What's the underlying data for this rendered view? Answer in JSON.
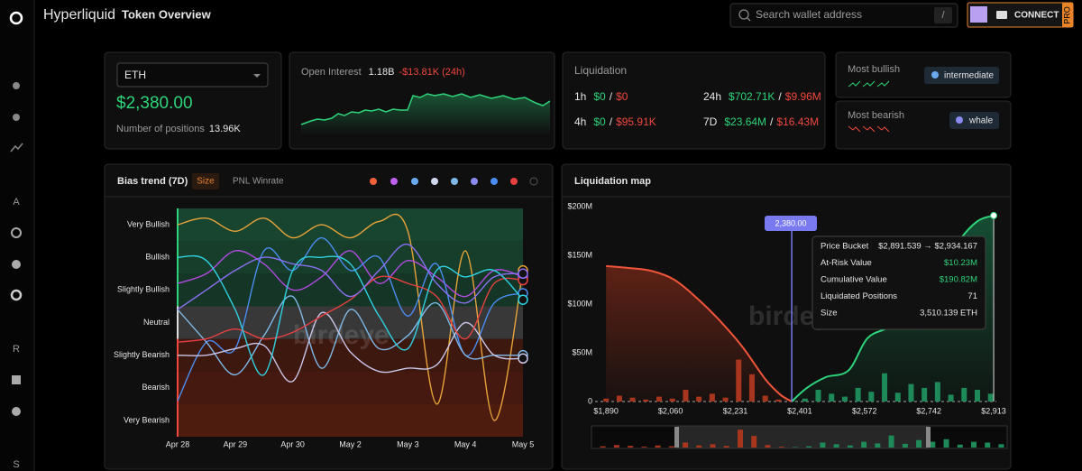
{
  "header": {
    "brand": "Hyperliquid",
    "title": "Token Overview",
    "search_placeholder": "Search wallet address",
    "shortcut": "/",
    "connect": "CONNECT",
    "pro": "PRO"
  },
  "sidebar": {
    "sections": [
      "A",
      "R",
      "S"
    ]
  },
  "token": {
    "symbol": "ETH",
    "price": "$2,380.00",
    "positions_label": "Number of positions",
    "positions": "13.96K"
  },
  "open_interest": {
    "label": "Open Interest",
    "value": "1.18B",
    "change": "-$13.81K (24h)"
  },
  "liquidation": {
    "title": "Liquidation",
    "separator": "/",
    "rows": [
      {
        "period": "1h",
        "long": "$0",
        "short": "$0"
      },
      {
        "period": "4h",
        "long": "$0",
        "short": "$95.91K"
      },
      {
        "period": "24h",
        "long": "$702.71K",
        "short": "$9.96M"
      },
      {
        "period": "7D",
        "long": "$23.64M",
        "short": "$16.43M"
      }
    ]
  },
  "sentiment": {
    "bullish_label": "Most bullish",
    "bullish_badge": "intermediate",
    "bearish_label": "Most bearish",
    "bearish_badge": "whale"
  },
  "chart_data": [
    {
      "type": "line",
      "title": "Bias trend (7D)",
      "tabs": [
        "Size",
        "PNL",
        "Winrate"
      ],
      "watermark": "birdeye",
      "categories": [
        "Apr 28",
        null,
        "Apr 29",
        null,
        "Apr 30",
        null,
        "May 2",
        null,
        "May 3",
        null,
        "May 4",
        null,
        "May 5"
      ],
      "ylim": [
        -3.5,
        3.5
      ],
      "yticks": [
        {
          "value": 3,
          "label": "Very Bullish"
        },
        {
          "value": 2,
          "label": "Bullish"
        },
        {
          "value": 1,
          "label": "Slightly Bullish"
        },
        {
          "value": 0,
          "label": "Neutral"
        },
        {
          "value": -1,
          "label": "Slightly Bearish"
        },
        {
          "value": -2,
          "label": "Bearish"
        },
        {
          "value": -3,
          "label": "Very Bearish"
        }
      ],
      "series": [
        {
          "color": "#e8a33a",
          "values": [
            3,
            3.2,
            2.8,
            3.2,
            2.6,
            3,
            2.6,
            3.1,
            2.8,
            -2.5,
            2.2,
            -3,
            1.6
          ]
        },
        {
          "color": "#b04ae0",
          "values": [
            1.2,
            1.5,
            2.2,
            1.8,
            1,
            1.4,
            2.2,
            1.2,
            1.9,
            1.4,
            0.8,
            1.6,
            1.4
          ]
        },
        {
          "color": "#4a8cf0",
          "values": [
            -2.4,
            -0.6,
            -0.8,
            2.2,
            1.6,
            2.6,
            1.6,
            2,
            0.2,
            1.8,
            -1,
            0.6,
            0.9
          ]
        },
        {
          "color": "#7fb8e6",
          "values": [
            0.4,
            -0.6,
            -1.6,
            -0.4,
            0.8,
            -1.4,
            0.4,
            -0.8,
            -0.4,
            0.6,
            -1,
            -1,
            -1
          ]
        },
        {
          "color": "#c9c6e8",
          "values": [
            -1,
            -1,
            -0.8,
            -0.7,
            -1.8,
            0.3,
            -0.9,
            -1.5,
            -1.4,
            -1.3,
            0,
            -1,
            -1.1
          ]
        },
        {
          "color": "#e84040",
          "values": [
            -0.6,
            -0.5,
            -0.2,
            -0.5,
            -0.3,
            0.2,
            0.7,
            1.4,
            1.2,
            0.8,
            -0.5,
            1.2,
            1.3
          ]
        },
        {
          "color": "#2fd0e0",
          "values": [
            2,
            1.9,
            0.4,
            -1.6,
            1.6,
            2,
            1.8,
            0.2,
            -0.8,
            1.6,
            1.4,
            1.6,
            0.7
          ]
        },
        {
          "color": "#8a6ff0",
          "values": [
            0.4,
            1,
            1.6,
            2,
            1.8,
            1.6,
            0.8,
            1.6,
            2.4,
            1.2,
            0.6,
            1.4,
            1.5
          ]
        }
      ]
    },
    {
      "type": "bar",
      "title": "Liquidation map",
      "xlim": [
        1861,
        2920
      ],
      "xticks": [
        {
          "value": 1890,
          "label": "$1,890"
        },
        {
          "value": 2060,
          "label": "$2,060"
        },
        {
          "value": 2231,
          "label": "$2,231"
        },
        {
          "value": 2401,
          "label": "$2,401"
        },
        {
          "value": 2572,
          "label": "$2,572"
        },
        {
          "value": 2742,
          "label": "$2,742"
        },
        {
          "value": 2913,
          "label": "$2,913"
        }
      ],
      "ylim": [
        0,
        200000000
      ],
      "yticks": [
        0,
        {
          "value": 50000000,
          "label": "$50M"
        },
        {
          "value": 100000000,
          "label": "$100M"
        },
        {
          "value": 150000000,
          "label": "$150M"
        },
        {
          "value": 200000000,
          "label": "$200M"
        }
      ],
      "series": [
        {
          "color": "#a8361e",
          "x": [
            1890,
            1925,
            1960,
            1995,
            2030,
            2065,
            2100,
            2135,
            2170,
            2205,
            2240,
            2275,
            2310,
            2345
          ],
          "values": [
            3000000,
            6000000,
            4000000,
            2000000,
            5000000,
            3000000,
            12000000,
            5000000,
            8000000,
            4000000,
            43000000,
            28000000,
            6000000,
            2000000
          ]
        },
        {
          "color": "#1e8a5a",
          "x": [
            2380,
            2415,
            2450,
            2485,
            2520,
            2555,
            2590,
            2625,
            2660,
            2695,
            2730,
            2765,
            2800,
            2835,
            2870,
            2905
          ],
          "values": [
            1000000,
            3000000,
            12000000,
            8000000,
            5000000,
            14000000,
            10000000,
            29000000,
            9000000,
            18000000,
            14000000,
            20000000,
            7000000,
            14000000,
            12000000,
            8000000
          ]
        }
      ],
      "lines": [
        {
          "color": "#f0553a",
          "x": [
            1890,
            1950,
            2010,
            2070,
            2130,
            2190,
            2250,
            2310,
            2350,
            2380
          ],
          "values": [
            139000000,
            137000000,
            134000000,
            125000000,
            106000000,
            83000000,
            56000000,
            23000000,
            7000000,
            0
          ]
        },
        {
          "color": "#2ed47a",
          "x": [
            2380,
            2420,
            2470,
            2530,
            2580,
            2640,
            2700,
            2760,
            2820,
            2870,
            2913
          ],
          "values": [
            0,
            14000000,
            25000000,
            32000000,
            65000000,
            77000000,
            97000000,
            125000000,
            164000000,
            185000000,
            190820000
          ]
        }
      ],
      "price_marker": {
        "value": 2380,
        "label": "2,380.00"
      },
      "tooltip": [
        {
          "label": "Price Bucket",
          "value": "$2,891.539 → $2,934.167"
        },
        {
          "label": "At-Risk Value",
          "value": "$10.23M"
        },
        {
          "label": "Cumulative Value",
          "value": "$190.82M"
        },
        {
          "label": "Liquidated Positions",
          "value": "71"
        },
        {
          "label": "Size",
          "value": "3,510.139 ETH"
        }
      ]
    }
  ]
}
